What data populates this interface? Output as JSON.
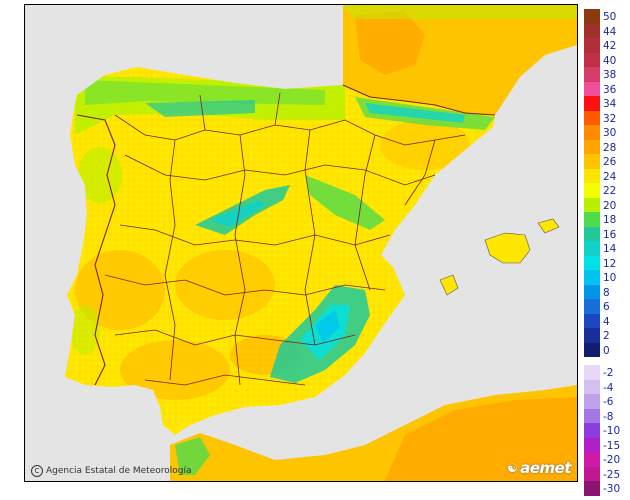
{
  "credit": {
    "text": "Agencia Estatal de Meteorología",
    "icon": "copyright-icon"
  },
  "brand": {
    "text": "aemet",
    "icon": "aemet-logo-icon"
  },
  "legend": {
    "items": [
      {
        "label": "50",
        "color": "#8b3a0f"
      },
      {
        "label": "44",
        "color": "#a0302a"
      },
      {
        "label": "42",
        "color": "#b0303a"
      },
      {
        "label": "40",
        "color": "#c03048"
      },
      {
        "label": "38",
        "color": "#d83c6a"
      },
      {
        "label": "36",
        "color": "#f0509a"
      },
      {
        "label": "34",
        "color": "#ff1010"
      },
      {
        "label": "32",
        "color": "#ff5a00"
      },
      {
        "label": "30",
        "color": "#ff8c00"
      },
      {
        "label": "28",
        "color": "#ffa500"
      },
      {
        "label": "26",
        "color": "#ffc400"
      },
      {
        "label": "24",
        "color": "#ffe600"
      },
      {
        "label": "22",
        "color": "#f2ff00"
      },
      {
        "label": "20",
        "color": "#b8f000"
      },
      {
        "label": "18",
        "color": "#50dc4a"
      },
      {
        "label": "16",
        "color": "#20c89a"
      },
      {
        "label": "14",
        "color": "#10d2c8"
      },
      {
        "label": "12",
        "color": "#00e2e8"
      },
      {
        "label": "10",
        "color": "#00c4ee"
      },
      {
        "label": "8",
        "color": "#0096e8"
      },
      {
        "label": "6",
        "color": "#1a6ed8"
      },
      {
        "label": "4",
        "color": "#1a48c0"
      },
      {
        "label": "2",
        "color": "#1a2e9a"
      },
      {
        "label": "0",
        "color": "#101e70"
      },
      {
        "label": "-2",
        "color": "#e6d8f6"
      },
      {
        "label": "-4",
        "color": "#d4c0f0"
      },
      {
        "label": "-6",
        "color": "#c0a2ec"
      },
      {
        "label": "-8",
        "color": "#a478e4"
      },
      {
        "label": "-10",
        "color": "#8a3ee0"
      },
      {
        "label": "-15",
        "color": "#b020c8"
      },
      {
        "label": "-20",
        "color": "#d01aa8"
      },
      {
        "label": "-25",
        "color": "#c01890"
      },
      {
        "label": "-30",
        "color": "#8c1470"
      }
    ]
  }
}
